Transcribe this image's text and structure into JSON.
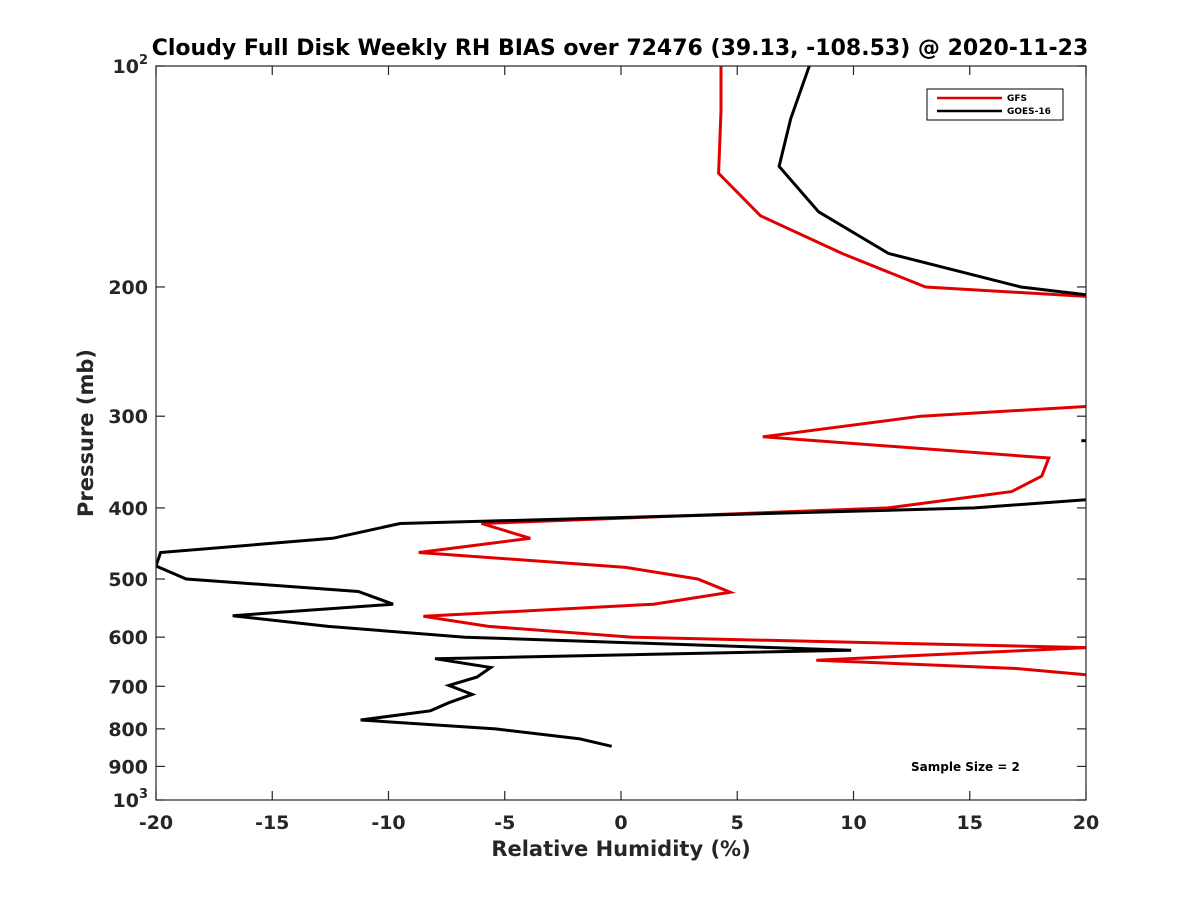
{
  "chart_data": {
    "type": "line",
    "title": "Cloudy Full Disk Weekly RH BIAS over 72476 (39.13, -108.53) @ 2020-11-23",
    "xlabel": "Relative Humidity (%)",
    "ylabel": "Pressure (mb)",
    "xlim": [
      -20,
      20
    ],
    "ylim": [
      100,
      1000
    ],
    "y_scale": "log",
    "y_reversed": true,
    "x_ticks": [
      -20,
      -15,
      -10,
      -5,
      0,
      5,
      10,
      15,
      20
    ],
    "x_tick_labels": [
      "-20",
      "-15",
      "-10",
      "-5",
      "0",
      "5",
      "10",
      "15",
      "20"
    ],
    "y_ticks": [
      100,
      200,
      300,
      400,
      500,
      600,
      700,
      800,
      900,
      1000
    ],
    "y_tick_labels": [
      {
        "base": "10",
        "exp": "2"
      },
      {
        "base": "200",
        "exp": ""
      },
      {
        "base": "300",
        "exp": ""
      },
      {
        "base": "400",
        "exp": ""
      },
      {
        "base": "500",
        "exp": ""
      },
      {
        "base": "600",
        "exp": ""
      },
      {
        "base": "700",
        "exp": ""
      },
      {
        "base": "800",
        "exp": ""
      },
      {
        "base": "900",
        "exp": ""
      },
      {
        "base": "10",
        "exp": "3"
      }
    ],
    "grid": false,
    "legend_position": "top-right",
    "series": [
      {
        "name": "GFS",
        "color": "#e00000",
        "segments": [
          [
            [
              4.3,
              100
            ],
            [
              4.3,
              115
            ],
            [
              4.2,
              140
            ],
            [
              6,
              160
            ],
            [
              9.5,
              180
            ],
            [
              13.1,
              200
            ],
            [
              20,
              206
            ]
          ],
          [
            [
              20,
              291
            ],
            [
              12.9,
              300
            ],
            [
              6.1,
              320
            ],
            [
              18.4,
              342
            ],
            [
              18.1,
              362
            ],
            [
              16.8,
              380
            ],
            [
              11.5,
              400
            ],
            [
              -6,
              420
            ],
            [
              -3.9,
              440
            ],
            [
              -8.7,
              460
            ],
            [
              0.2,
              482
            ],
            [
              3.3,
              500
            ],
            [
              4.7,
              521
            ],
            [
              1.4,
              541
            ],
            [
              -8.5,
              562
            ],
            [
              -5.7,
              580
            ],
            [
              0.5,
              600
            ],
            [
              20,
              620
            ],
            [
              8.4,
              645
            ],
            [
              17,
              662
            ],
            [
              20,
              675
            ]
          ]
        ]
      },
      {
        "name": "GOES-16",
        "color": "#000000",
        "segments": [
          [
            [
              8.1,
              100
            ],
            [
              7.3,
              118
            ],
            [
              6.8,
              137
            ],
            [
              8.5,
              158
            ],
            [
              11.5,
              180
            ],
            [
              17.2,
              200
            ],
            [
              20,
              205
            ]
          ],
          [
            [
              19.8,
              324
            ],
            [
              20,
              324
            ]
          ],
          [
            [
              20,
              390
            ],
            [
              15.2,
              400
            ],
            [
              -9.5,
              420
            ],
            [
              -12.4,
              440
            ],
            [
              -19.8,
              460
            ],
            [
              -20,
              480
            ],
            [
              -18.7,
              500
            ],
            [
              -11.3,
              520
            ],
            [
              -9.8,
              541
            ],
            [
              -16.7,
              561
            ],
            [
              -12.6,
              580
            ],
            [
              -6.7,
              600
            ],
            [
              9.9,
              625
            ],
            [
              -8,
              642
            ],
            [
              -5.6,
              660
            ],
            [
              -6.2,
              680
            ],
            [
              -7.4,
              698
            ],
            [
              -6.4,
              718
            ],
            [
              -7.4,
              737
            ],
            [
              -8.2,
              756
            ],
            [
              -11.2,
              778
            ],
            [
              -5.4,
              800
            ],
            [
              -1.8,
              825
            ],
            [
              -0.4,
              845
            ]
          ]
        ]
      }
    ],
    "annotation": "Sample Size = 2"
  }
}
